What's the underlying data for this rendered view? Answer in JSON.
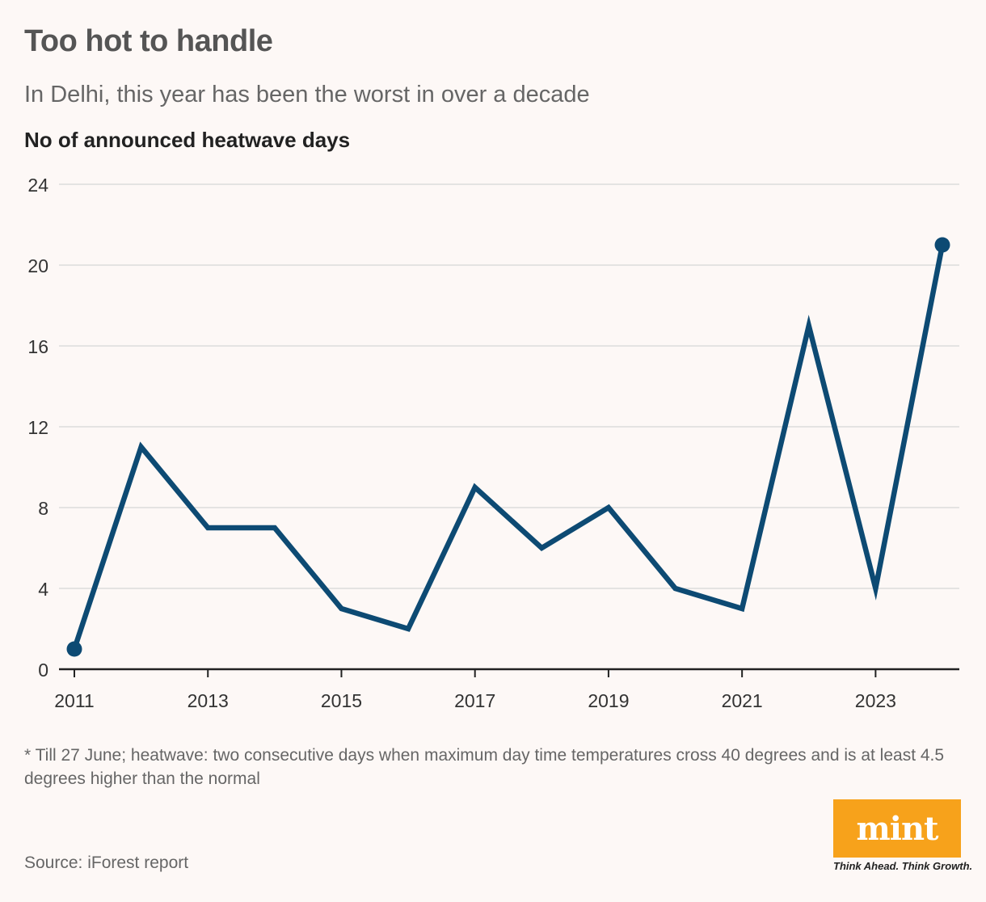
{
  "header": {
    "title": "Too hot to handle",
    "subtitle": "In Delhi, this year has been the worst in over a decade",
    "ylabel": "No of announced heatwave days"
  },
  "footer": {
    "footnote": "* Till 27 June; heatwave: two consecutive days when maximum day time temperatures cross 40 degrees and is at least 4.5 degrees higher than the normal",
    "source": "Source: iForest report",
    "logo_text": "mint",
    "tagline": "Think Ahead. Think Growth."
  },
  "colors": {
    "line": "#0d4a73",
    "grid": "#dcdcdc",
    "axis": "#222222",
    "logo_bg": "#f7a21b"
  },
  "chart_data": {
    "type": "line",
    "title": "Too hot to handle",
    "subtitle": "In Delhi, this year has been the worst in over a decade",
    "xlabel": "",
    "ylabel": "No of announced heatwave days",
    "x": [
      2011,
      2012,
      2013,
      2014,
      2015,
      2016,
      2017,
      2018,
      2019,
      2020,
      2021,
      2022,
      2023,
      2024
    ],
    "series": [
      {
        "name": "Heatwave days",
        "values": [
          1,
          11,
          7,
          7,
          3,
          2,
          9,
          6,
          8,
          4,
          3,
          17,
          4,
          21
        ]
      }
    ],
    "xticks": [
      "2011",
      "2013",
      "2015",
      "2017",
      "2019",
      "2021",
      "2023"
    ],
    "yticks": [
      "0",
      "4",
      "8",
      "12",
      "16",
      "20",
      "24"
    ],
    "ylim": [
      0,
      24
    ],
    "grid": true,
    "endpoint_markers": true
  }
}
